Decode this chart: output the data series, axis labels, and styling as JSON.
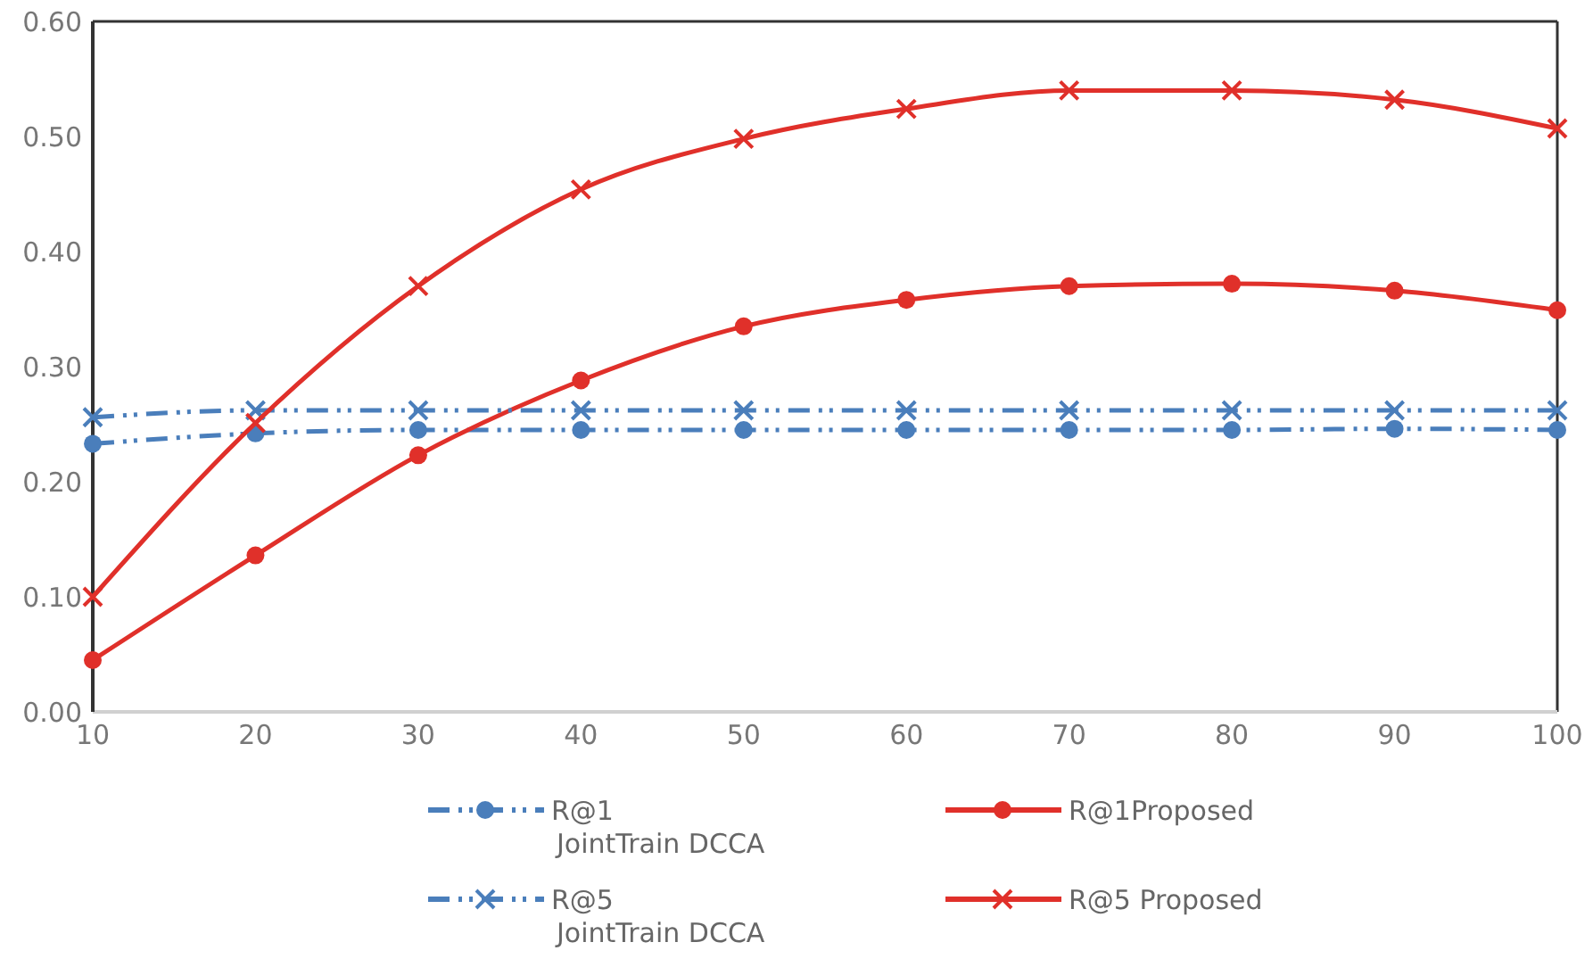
{
  "chart_data": {
    "type": "line",
    "x": [
      10,
      20,
      30,
      40,
      50,
      60,
      70,
      80,
      90,
      100
    ],
    "xlim": [
      10,
      100
    ],
    "xticks": [
      10,
      20,
      30,
      40,
      50,
      60,
      70,
      80,
      90,
      100
    ],
    "ylim": [
      0,
      0.6
    ],
    "yticks": [
      {
        "value": 0,
        "label": "0.00"
      },
      {
        "value": 0.1,
        "label": "0.10"
      },
      {
        "value": 0.2,
        "label": "0.20"
      },
      {
        "value": 0.3,
        "label": "0.30"
      },
      {
        "value": 0.4,
        "label": "0.40"
      },
      {
        "value": 0.5,
        "label": "0.50"
      },
      {
        "value": 0.6,
        "label": "0.60"
      }
    ],
    "grid": false,
    "legend": "bottom",
    "series": [
      {
        "name": "R@1\nJointTrain DCCA",
        "color": "#4a7ebb",
        "marker": "circle",
        "line_style": "dashed",
        "values": [
          0.233,
          0.242,
          0.245,
          0.245,
          0.245,
          0.245,
          0.245,
          0.245,
          0.246,
          0.245
        ]
      },
      {
        "name": "R@1Proposed",
        "color": "#e0302a",
        "marker": "circle",
        "line_style": "solid",
        "values": [
          0.045,
          0.136,
          0.223,
          0.288,
          0.335,
          0.358,
          0.37,
          0.372,
          0.366,
          0.349
        ]
      },
      {
        "name": "R@5\nJointTrain DCCA",
        "color": "#4a7ebb",
        "marker": "cross",
        "line_style": "dashed",
        "values": [
          0.256,
          0.262,
          0.262,
          0.262,
          0.262,
          0.262,
          0.262,
          0.262,
          0.262,
          0.262
        ]
      },
      {
        "name": "R@5 Proposed",
        "color": "#e0302a",
        "marker": "cross",
        "line_style": "solid",
        "values": [
          0.1,
          0.251,
          0.37,
          0.454,
          0.498,
          0.524,
          0.54,
          0.54,
          0.532,
          0.507
        ]
      }
    ]
  }
}
